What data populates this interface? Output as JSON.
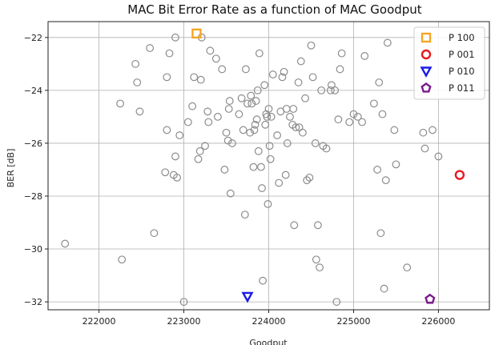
{
  "chart_data": {
    "type": "scatter",
    "title": "MAC Bit Error Rate as a function of MAC Goodput",
    "xlabel": "Goodput",
    "ylabel": "BER [dB]",
    "xlim": [
      221400,
      226600
    ],
    "ylim": [
      -32.3,
      -21.4
    ],
    "xticks": [
      222000,
      223000,
      224000,
      225000,
      226000
    ],
    "yticks": [
      -22,
      -24,
      -26,
      -28,
      -30,
      -32
    ],
    "grid": true,
    "legend_position": "top-right",
    "series": [
      {
        "marker": "circle-open",
        "color": "#8c8c8c",
        "points": [
          [
            221600,
            -29.8
          ],
          [
            222250,
            -24.5
          ],
          [
            222270,
            -30.4
          ],
          [
            222430,
            -23.0
          ],
          [
            222450,
            -23.7
          ],
          [
            222480,
            -24.8
          ],
          [
            222600,
            -22.4
          ],
          [
            222650,
            -29.4
          ],
          [
            222780,
            -27.1
          ],
          [
            222800,
            -23.5
          ],
          [
            222800,
            -25.5
          ],
          [
            222830,
            -22.6
          ],
          [
            222880,
            -27.2
          ],
          [
            222900,
            -22.0
          ],
          [
            222900,
            -26.5
          ],
          [
            222920,
            -27.3
          ],
          [
            222950,
            -25.7
          ],
          [
            223000,
            -32.0
          ],
          [
            223050,
            -25.2
          ],
          [
            223100,
            -24.6
          ],
          [
            223120,
            -23.5
          ],
          [
            223170,
            -26.6
          ],
          [
            223190,
            -26.3
          ],
          [
            223200,
            -23.6
          ],
          [
            223210,
            -22.0
          ],
          [
            223250,
            -26.1
          ],
          [
            223280,
            -24.8
          ],
          [
            223290,
            -25.2
          ],
          [
            223310,
            -22.5
          ],
          [
            223380,
            -22.8
          ],
          [
            223400,
            -25.0
          ],
          [
            223450,
            -23.2
          ],
          [
            223480,
            -27.0
          ],
          [
            223500,
            -25.6
          ],
          [
            223520,
            -25.9
          ],
          [
            223530,
            -24.7
          ],
          [
            223540,
            -24.4
          ],
          [
            223550,
            -27.9
          ],
          [
            223570,
            -26.0
          ],
          [
            223650,
            -24.9
          ],
          [
            223680,
            -24.3
          ],
          [
            223700,
            -25.5
          ],
          [
            223720,
            -28.7
          ],
          [
            223730,
            -23.2
          ],
          [
            223750,
            -24.5
          ],
          [
            223780,
            -25.6
          ],
          [
            223790,
            -24.2
          ],
          [
            223800,
            -24.5
          ],
          [
            223820,
            -26.9
          ],
          [
            223830,
            -25.5
          ],
          [
            223840,
            -25.3
          ],
          [
            223850,
            -24.4
          ],
          [
            223860,
            -25.1
          ],
          [
            223870,
            -24.0
          ],
          [
            223880,
            -26.3
          ],
          [
            223890,
            -22.6
          ],
          [
            223910,
            -26.9
          ],
          [
            223920,
            -27.7
          ],
          [
            223930,
            -31.2
          ],
          [
            223950,
            -23.8
          ],
          [
            223960,
            -25.3
          ],
          [
            223970,
            -24.9
          ],
          [
            223980,
            -25.0
          ],
          [
            223990,
            -28.3
          ],
          [
            224000,
            -24.7
          ],
          [
            224010,
            -26.1
          ],
          [
            224020,
            -26.6
          ],
          [
            224030,
            -25.0
          ],
          [
            224050,
            -23.4
          ],
          [
            224100,
            -25.7
          ],
          [
            224120,
            -27.5
          ],
          [
            224140,
            -24.8
          ],
          [
            224160,
            -23.5
          ],
          [
            224180,
            -23.3
          ],
          [
            224200,
            -27.2
          ],
          [
            224210,
            -24.7
          ],
          [
            224220,
            -26.0
          ],
          [
            224250,
            -25.0
          ],
          [
            224280,
            -25.3
          ],
          [
            224290,
            -24.7
          ],
          [
            224300,
            -29.1
          ],
          [
            224320,
            -25.4
          ],
          [
            224350,
            -23.7
          ],
          [
            224360,
            -25.4
          ],
          [
            224380,
            -22.9
          ],
          [
            224400,
            -25.6
          ],
          [
            224430,
            -24.3
          ],
          [
            224450,
            -27.4
          ],
          [
            224480,
            -27.3
          ],
          [
            224500,
            -22.3
          ],
          [
            224520,
            -23.5
          ],
          [
            224550,
            -26.0
          ],
          [
            224560,
            -30.4
          ],
          [
            224580,
            -29.1
          ],
          [
            224600,
            -30.7
          ],
          [
            224620,
            -24.0
          ],
          [
            224640,
            -26.1
          ],
          [
            224680,
            -26.2
          ],
          [
            224730,
            -24.0
          ],
          [
            224740,
            -23.8
          ],
          [
            224780,
            -24.0
          ],
          [
            224800,
            -32.0
          ],
          [
            224820,
            -25.1
          ],
          [
            224840,
            -23.2
          ],
          [
            224860,
            -22.6
          ],
          [
            224950,
            -25.2
          ],
          [
            225000,
            -24.9
          ],
          [
            225050,
            -25.0
          ],
          [
            225100,
            -25.2
          ],
          [
            225130,
            -22.7
          ],
          [
            225240,
            -24.5
          ],
          [
            225280,
            -27.0
          ],
          [
            225300,
            -23.7
          ],
          [
            225320,
            -29.4
          ],
          [
            225340,
            -24.9
          ],
          [
            225360,
            -31.5
          ],
          [
            225380,
            -27.4
          ],
          [
            225400,
            -22.2
          ],
          [
            225480,
            -25.5
          ],
          [
            225500,
            -26.8
          ],
          [
            225630,
            -30.7
          ],
          [
            225820,
            -25.6
          ],
          [
            225840,
            -26.2
          ],
          [
            225930,
            -25.5
          ],
          [
            226000,
            -26.5
          ]
        ]
      },
      {
        "name": "P 100",
        "marker": "square-open",
        "color": "#f5a623",
        "points": [
          [
            223150,
            -21.85
          ]
        ]
      },
      {
        "name": "P 001",
        "marker": "circle-open",
        "color": "#e8191d",
        "points": [
          [
            226250,
            -27.2
          ]
        ]
      },
      {
        "name": "P 010",
        "marker": "triangle-open",
        "color": "#1a1ae6",
        "points": [
          [
            223750,
            -31.8
          ]
        ]
      },
      {
        "name": "P 011",
        "marker": "pentagon-open",
        "color": "#7a1a8c",
        "points": [
          [
            225900,
            -31.9
          ]
        ]
      }
    ]
  }
}
